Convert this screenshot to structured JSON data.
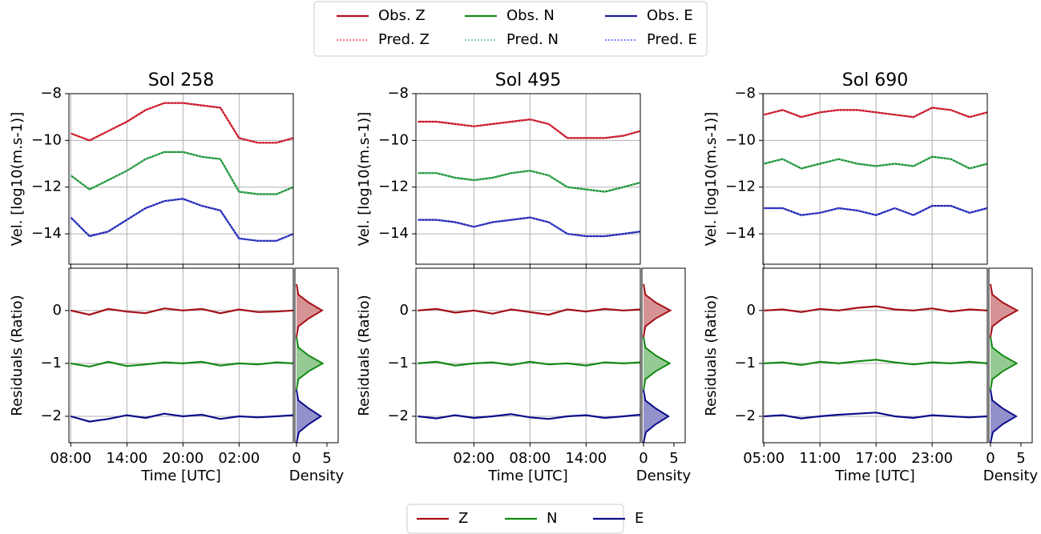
{
  "chart_data": [
    {
      "type": "line",
      "title": "Sol 258",
      "ylabel": "Vel. [log10(m.s-1)]",
      "grid": true,
      "xlim": [
        7.8,
        31.8
      ],
      "xticks": [
        8,
        14,
        20,
        26
      ],
      "ylim": [
        -15.3,
        -8
      ],
      "yticks": [
        {
          "value": -8,
          "label": "−8"
        },
        {
          "value": -10,
          "label": "−10"
        },
        {
          "value": -12,
          "label": "−12"
        },
        {
          "value": -14,
          "label": "−14"
        }
      ],
      "x": [
        8,
        10,
        12,
        14,
        16,
        18,
        20,
        22,
        24,
        26,
        28,
        30,
        31.8
      ],
      "series": [
        {
          "name": "Obs. Z",
          "color": "#b01020",
          "linestyle": "solid",
          "values": [
            -9.7,
            -10.0,
            -9.6,
            -9.2,
            -8.7,
            -8.4,
            -8.4,
            -8.5,
            -8.6,
            -9.9,
            -10.1,
            -10.1,
            -9.9
          ]
        },
        {
          "name": "Pred. Z",
          "color": "#ff4050",
          "linestyle": "dotted",
          "values": [
            -9.7,
            -10.0,
            -9.6,
            -9.2,
            -8.7,
            -8.4,
            -8.4,
            -8.5,
            -8.6,
            -9.9,
            -10.1,
            -10.1,
            -9.9
          ]
        },
        {
          "name": "Obs. N",
          "color": "#13891a",
          "linestyle": "solid",
          "values": [
            -11.5,
            -12.1,
            -11.7,
            -11.3,
            -10.8,
            -10.5,
            -10.5,
            -10.7,
            -10.8,
            -12.2,
            -12.3,
            -12.3,
            -12.0
          ]
        },
        {
          "name": "Pred. N",
          "color": "#5fc4a0",
          "linestyle": "dotted",
          "values": [
            -11.5,
            -12.1,
            -11.7,
            -11.3,
            -10.8,
            -10.5,
            -10.5,
            -10.7,
            -10.8,
            -12.2,
            -12.3,
            -12.3,
            -12.0
          ]
        },
        {
          "name": "Obs. E",
          "color": "#1a1a9a",
          "linestyle": "solid",
          "values": [
            -13.3,
            -14.1,
            -13.9,
            -13.4,
            -12.9,
            -12.6,
            -12.5,
            -12.8,
            -13.0,
            -14.2,
            -14.3,
            -14.3,
            -14.0
          ]
        },
        {
          "name": "Pred. E",
          "color": "#4f5fff",
          "linestyle": "dotted",
          "values": [
            -13.3,
            -14.1,
            -13.9,
            -13.4,
            -12.9,
            -12.6,
            -12.5,
            -12.8,
            -13.0,
            -14.2,
            -14.3,
            -14.3,
            -14.0
          ]
        }
      ]
    },
    {
      "type": "line",
      "ylabel": "Residuals (Ratio)",
      "xlabel": "Time [UTC]",
      "grid": true,
      "xlim": [
        7.8,
        31.8
      ],
      "xticks": [
        {
          "value": 8,
          "label": "08:00"
        },
        {
          "value": 14,
          "label": "14:00"
        },
        {
          "value": 20,
          "label": "20:00"
        },
        {
          "value": 26,
          "label": "02:00"
        }
      ],
      "ylim": [
        -2.5,
        0.8
      ],
      "yticks": [
        0,
        {
          "value": -1,
          "label": "−1"
        },
        {
          "value": -2,
          "label": "−2"
        }
      ],
      "x": [
        8,
        10,
        12,
        14,
        16,
        18,
        20,
        22,
        24,
        26,
        28,
        30,
        31.8
      ],
      "series": [
        {
          "name": "Z",
          "color": "#a50f15",
          "values": [
            0.0,
            -0.08,
            0.03,
            -0.02,
            -0.05,
            0.04,
            0.0,
            0.03,
            -0.05,
            0.02,
            -0.03,
            -0.02,
            0.0
          ]
        },
        {
          "name": "N",
          "color": "#138a13",
          "values": [
            -1.0,
            -1.06,
            -0.97,
            -1.05,
            -1.02,
            -0.98,
            -1.0,
            -0.97,
            -1.04,
            -1.0,
            -1.02,
            -0.98,
            -1.0
          ]
        },
        {
          "name": "E",
          "color": "#0c0c8c",
          "values": [
            -2.0,
            -2.1,
            -2.05,
            -1.98,
            -2.03,
            -1.95,
            -2.0,
            -1.97,
            -2.05,
            -2.0,
            -2.02,
            -2.0,
            -1.98
          ]
        }
      ]
    },
    {
      "type": "density",
      "xlabel": "Density",
      "xlim": [
        -0.26,
        6.85
      ],
      "xticks": [
        0,
        5
      ],
      "ylim": [
        -2.5,
        0.8
      ],
      "series": [
        {
          "color": "#a50f15",
          "y": [
            -0.5,
            -0.3,
            -0.15,
            0,
            0.15,
            0.3,
            0.5
          ],
          "values": [
            0,
            0.3,
            2.0,
            4.2,
            2.0,
            0.3,
            0
          ]
        },
        {
          "color": "#138a13",
          "y": [
            -1.5,
            -1.3,
            -1.15,
            -1,
            -0.85,
            -0.7,
            -0.5
          ],
          "values": [
            0,
            0.3,
            2.0,
            4.3,
            2.0,
            0.3,
            0
          ]
        },
        {
          "color": "#0c0c8c",
          "y": [
            -2.5,
            -2.3,
            -2.15,
            -2,
            -1.85,
            -1.7,
            -1.5
          ],
          "values": [
            0,
            0.4,
            2.0,
            4.0,
            2.0,
            0.3,
            0
          ]
        }
      ]
    },
    {
      "type": "line",
      "title": "Sol 495",
      "ylabel": "Vel. [log10(m.s-1)]",
      "grid": true,
      "xlim": [
        19.8,
        43.8
      ],
      "xticks": [
        26,
        32,
        38
      ],
      "ylim": [
        -15.3,
        -8
      ],
      "yticks": [
        {
          "value": -8,
          "label": "−8"
        },
        {
          "value": -10,
          "label": "−10"
        },
        {
          "value": -12,
          "label": "−12"
        },
        {
          "value": -14,
          "label": "−14"
        }
      ],
      "x": [
        20,
        22,
        24,
        26,
        28,
        30,
        32,
        34,
        36,
        38,
        40,
        42,
        43.8
      ],
      "series": [
        {
          "name": "Obs. Z",
          "color": "#b01020",
          "linestyle": "solid",
          "values": [
            -9.2,
            -9.2,
            -9.3,
            -9.4,
            -9.3,
            -9.2,
            -9.1,
            -9.3,
            -9.9,
            -9.9,
            -9.9,
            -9.8,
            -9.6
          ]
        },
        {
          "name": "Pred. Z",
          "color": "#ff4050",
          "linestyle": "dotted",
          "values": [
            -9.2,
            -9.2,
            -9.3,
            -9.4,
            -9.3,
            -9.2,
            -9.1,
            -9.3,
            -9.9,
            -9.9,
            -9.9,
            -9.8,
            -9.6
          ]
        },
        {
          "name": "Obs. N",
          "color": "#13891a",
          "linestyle": "solid",
          "values": [
            -11.4,
            -11.4,
            -11.6,
            -11.7,
            -11.6,
            -11.4,
            -11.3,
            -11.5,
            -12.0,
            -12.1,
            -12.2,
            -12.0,
            -11.8
          ]
        },
        {
          "name": "Pred. N",
          "color": "#5fc4a0",
          "linestyle": "dotted",
          "values": [
            -11.4,
            -11.4,
            -11.6,
            -11.7,
            -11.6,
            -11.4,
            -11.3,
            -11.5,
            -12.0,
            -12.1,
            -12.2,
            -12.0,
            -11.8
          ]
        },
        {
          "name": "Obs. E",
          "color": "#1a1a9a",
          "linestyle": "solid",
          "values": [
            -13.4,
            -13.4,
            -13.5,
            -13.7,
            -13.5,
            -13.4,
            -13.3,
            -13.5,
            -14.0,
            -14.1,
            -14.1,
            -14.0,
            -13.9
          ]
        },
        {
          "name": "Pred. E",
          "color": "#4f5fff",
          "linestyle": "dotted",
          "values": [
            -13.4,
            -13.4,
            -13.5,
            -13.7,
            -13.5,
            -13.4,
            -13.3,
            -13.5,
            -14.0,
            -14.1,
            -14.1,
            -14.0,
            -13.9
          ]
        }
      ]
    },
    {
      "type": "line",
      "ylabel": "Residuals (Ratio)",
      "xlabel": "Time [UTC]",
      "grid": true,
      "xlim": [
        19.8,
        43.8
      ],
      "xticks": [
        {
          "value": 26,
          "label": "02:00"
        },
        {
          "value": 32,
          "label": "08:00"
        },
        {
          "value": 38,
          "label": "14:00"
        }
      ],
      "ylim": [
        -2.5,
        0.8
      ],
      "yticks": [
        0,
        {
          "value": -1,
          "label": "−1"
        },
        {
          "value": -2,
          "label": "−2"
        }
      ],
      "x": [
        20,
        22,
        24,
        26,
        28,
        30,
        32,
        34,
        36,
        38,
        40,
        42,
        43.8
      ],
      "series": [
        {
          "name": "Z",
          "color": "#a50f15",
          "values": [
            0.0,
            0.03,
            -0.04,
            0.0,
            -0.06,
            0.02,
            -0.03,
            -0.08,
            0.02,
            -0.02,
            0.03,
            0.0,
            0.02
          ]
        },
        {
          "name": "N",
          "color": "#138a13",
          "values": [
            -1.0,
            -0.97,
            -1.04,
            -1.0,
            -0.98,
            -1.03,
            -0.97,
            -1.02,
            -1.0,
            -1.04,
            -0.98,
            -1.0,
            -0.98
          ]
        },
        {
          "name": "E",
          "color": "#0c0c8c",
          "values": [
            -2.0,
            -2.04,
            -1.98,
            -2.03,
            -2.0,
            -1.96,
            -2.02,
            -2.05,
            -2.0,
            -1.98,
            -2.03,
            -2.0,
            -1.97
          ]
        }
      ]
    },
    {
      "type": "density",
      "xlabel": "Density",
      "xlim": [
        -0.26,
        6.85
      ],
      "xticks": [
        0,
        5
      ],
      "ylim": [
        -2.5,
        0.8
      ],
      "series": [
        {
          "color": "#a50f15",
          "y": [
            -0.5,
            -0.3,
            -0.15,
            0,
            0.15,
            0.3,
            0.5
          ],
          "values": [
            0,
            0.3,
            2.0,
            4.4,
            2.0,
            0.3,
            0
          ]
        },
        {
          "color": "#138a13",
          "y": [
            -1.5,
            -1.3,
            -1.15,
            -1,
            -0.85,
            -0.7,
            -0.5
          ],
          "values": [
            0,
            0.3,
            2.0,
            4.3,
            2.0,
            0.3,
            0
          ]
        },
        {
          "color": "#0c0c8c",
          "y": [
            -2.5,
            -2.3,
            -2.15,
            -2,
            -1.85,
            -1.7,
            -1.5
          ],
          "values": [
            0,
            0.4,
            2.0,
            4.1,
            2.0,
            0.3,
            0
          ]
        }
      ]
    },
    {
      "type": "line",
      "title": "Sol 690",
      "ylabel": "Vel. [log10(m.s-1)]",
      "grid": true,
      "xlim": [
        4.9,
        28.9
      ],
      "xticks": [
        5,
        11,
        17,
        23
      ],
      "ylim": [
        -15.3,
        -8
      ],
      "yticks": [
        {
          "value": -8,
          "label": "−8"
        },
        {
          "value": -10,
          "label": "−10"
        },
        {
          "value": -12,
          "label": "−12"
        },
        {
          "value": -14,
          "label": "−14"
        }
      ],
      "x": [
        5,
        7,
        9,
        11,
        13,
        15,
        17,
        19,
        21,
        23,
        25,
        27,
        28.9
      ],
      "series": [
        {
          "name": "Obs. Z",
          "color": "#b01020",
          "linestyle": "solid",
          "values": [
            -8.9,
            -8.7,
            -9.0,
            -8.8,
            -8.7,
            -8.7,
            -8.8,
            -8.9,
            -9.0,
            -8.6,
            -8.7,
            -9.0,
            -8.8
          ]
        },
        {
          "name": "Pred. Z",
          "color": "#ff4050",
          "linestyle": "dotted",
          "values": [
            -8.9,
            -8.7,
            -9.0,
            -8.8,
            -8.7,
            -8.7,
            -8.8,
            -8.9,
            -9.0,
            -8.6,
            -8.7,
            -9.0,
            -8.8
          ]
        },
        {
          "name": "Obs. N",
          "color": "#13891a",
          "linestyle": "solid",
          "values": [
            -11.0,
            -10.8,
            -11.2,
            -11.0,
            -10.8,
            -11.0,
            -11.1,
            -11.0,
            -11.1,
            -10.7,
            -10.8,
            -11.2,
            -11.0
          ]
        },
        {
          "name": "Pred. N",
          "color": "#5fc4a0",
          "linestyle": "dotted",
          "values": [
            -11.0,
            -10.8,
            -11.2,
            -11.0,
            -10.8,
            -11.0,
            -11.1,
            -11.0,
            -11.1,
            -10.7,
            -10.8,
            -11.2,
            -11.0
          ]
        },
        {
          "name": "Obs. E",
          "color": "#1a1a9a",
          "linestyle": "solid",
          "values": [
            -12.9,
            -12.9,
            -13.2,
            -13.1,
            -12.9,
            -13.0,
            -13.2,
            -12.9,
            -13.2,
            -12.8,
            -12.8,
            -13.1,
            -12.9
          ]
        },
        {
          "name": "Pred. E",
          "color": "#4f5fff",
          "linestyle": "dotted",
          "values": [
            -12.9,
            -12.9,
            -13.2,
            -13.1,
            -12.9,
            -13.0,
            -13.2,
            -12.9,
            -13.2,
            -12.8,
            -12.8,
            -13.1,
            -12.9
          ]
        }
      ]
    },
    {
      "type": "line",
      "ylabel": "Residuals (Ratio)",
      "xlabel": "Time [UTC]",
      "grid": true,
      "xlim": [
        4.9,
        28.9
      ],
      "xticks": [
        {
          "value": 5,
          "label": "05:00"
        },
        {
          "value": 11,
          "label": "11:00"
        },
        {
          "value": 17,
          "label": "17:00"
        },
        {
          "value": 23,
          "label": "23:00"
        }
      ],
      "ylim": [
        -2.5,
        0.8
      ],
      "yticks": [
        0,
        {
          "value": -1,
          "label": "−1"
        },
        {
          "value": -2,
          "label": "−2"
        }
      ],
      "x": [
        5,
        7,
        9,
        11,
        13,
        15,
        17,
        19,
        21,
        23,
        25,
        27,
        28.9
      ],
      "series": [
        {
          "name": "Z",
          "color": "#a50f15",
          "values": [
            0.0,
            0.02,
            -0.03,
            0.03,
            0.0,
            0.05,
            0.08,
            0.02,
            0.0,
            0.04,
            -0.02,
            0.02,
            0.0
          ]
        },
        {
          "name": "N",
          "color": "#138a13",
          "values": [
            -1.0,
            -0.98,
            -1.03,
            -0.97,
            -1.0,
            -0.96,
            -0.93,
            -0.98,
            -1.02,
            -0.98,
            -1.0,
            -0.97,
            -1.0
          ]
        },
        {
          "name": "E",
          "color": "#0c0c8c",
          "values": [
            -2.0,
            -1.98,
            -2.04,
            -2.0,
            -1.97,
            -1.95,
            -1.93,
            -2.0,
            -2.03,
            -1.98,
            -2.0,
            -2.02,
            -2.0
          ]
        }
      ]
    },
    {
      "type": "density",
      "xlabel": "Density",
      "xlim": [
        -0.26,
        6.85
      ],
      "xticks": [
        0,
        5
      ],
      "ylim": [
        -2.5,
        0.8
      ],
      "series": [
        {
          "color": "#a50f15",
          "y": [
            -0.5,
            -0.3,
            -0.15,
            0,
            0.15,
            0.3,
            0.5
          ],
          "values": [
            0,
            0.3,
            2.0,
            4.4,
            2.0,
            0.3,
            0
          ]
        },
        {
          "color": "#138a13",
          "y": [
            -1.5,
            -1.3,
            -1.15,
            -1,
            -0.85,
            -0.7,
            -0.5
          ],
          "values": [
            0,
            0.3,
            2.0,
            4.3,
            2.0,
            0.3,
            0
          ]
        },
        {
          "color": "#0c0c8c",
          "y": [
            -2.5,
            -2.3,
            -2.15,
            -2,
            -1.85,
            -1.7,
            -1.5
          ],
          "values": [
            0,
            0.4,
            2.0,
            4.2,
            2.0,
            0.3,
            0
          ]
        }
      ]
    }
  ]
}
